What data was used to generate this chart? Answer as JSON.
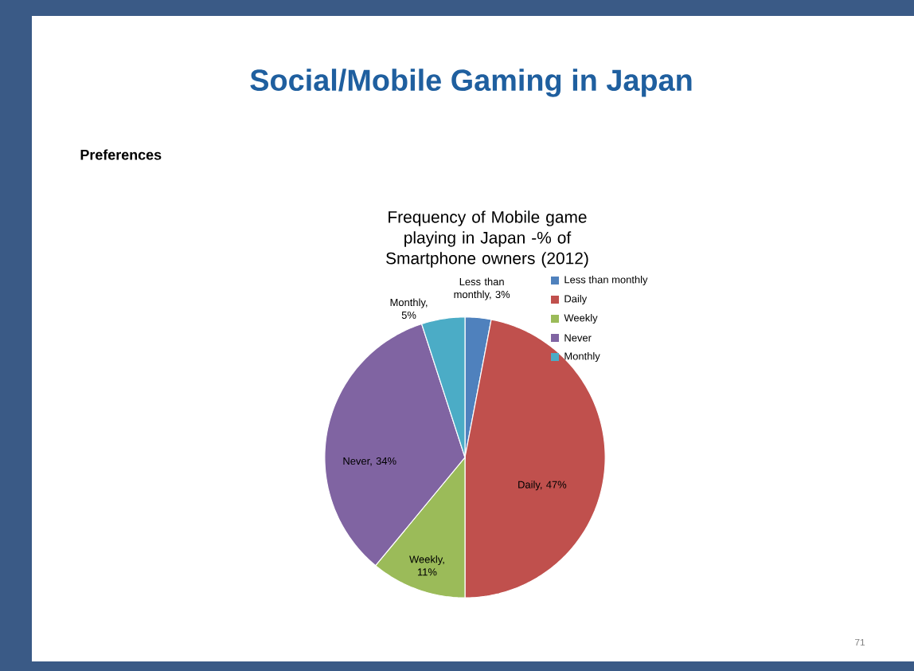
{
  "chart_data": {
    "type": "pie",
    "title": "Frequency of Mobile game playing in Japan -% of Smartphone owners (2012)",
    "categories": [
      "Less than monthly",
      "Daily",
      "Weekly",
      "Never",
      "Monthly"
    ],
    "values": [
      3,
      47,
      11,
      34,
      5
    ],
    "value_labels": [
      "Less than monthly, 3%",
      "Daily, 47%",
      "Weekly, 11%",
      "Never, 34%",
      "Monthly, 5%"
    ],
    "colors": [
      "#4f81bd",
      "#c0504d",
      "#9bbb59",
      "#8064a2",
      "#4bacc6"
    ],
    "legend": "right",
    "annotations": [
      "Social/Mobile Gaming in Japan",
      "Preferences",
      "71"
    ]
  }
}
